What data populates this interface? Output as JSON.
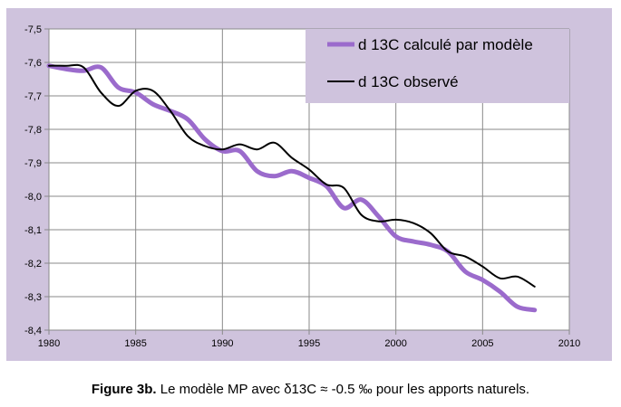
{
  "chart_data": {
    "type": "line",
    "title": "",
    "xlabel": "",
    "ylabel": "",
    "xlim": [
      1980,
      2010
    ],
    "ylim": [
      -8.4,
      -7.5
    ],
    "x_ticks": [
      1980,
      1985,
      1990,
      1995,
      2000,
      2005,
      2010
    ],
    "x_tick_labels": [
      "1980",
      "1985",
      "1990",
      "1995",
      "2000",
      "2005",
      "2010"
    ],
    "y_ticks": [
      -7.5,
      -7.6,
      -7.7,
      -7.8,
      -7.9,
      -8.0,
      -8.1,
      -8.2,
      -8.3,
      -8.4
    ],
    "y_tick_labels": [
      "-7,5",
      "-7,6",
      "-7,7",
      "-7,8",
      "-7,9",
      "-8,0",
      "-8,1",
      "-8,2",
      "-8,3",
      "-8,4"
    ],
    "grid": true,
    "legend_position": "top-right",
    "series": [
      {
        "name": "d 13C calculé par modèle",
        "color": "#9b6bcc",
        "points": [
          [
            1980,
            -7.61
          ],
          [
            1981,
            -7.62
          ],
          [
            1982,
            -7.625
          ],
          [
            1983,
            -7.615
          ],
          [
            1984,
            -7.675
          ],
          [
            1985,
            -7.69
          ],
          [
            1986,
            -7.725
          ],
          [
            1987,
            -7.745
          ],
          [
            1988,
            -7.77
          ],
          [
            1989,
            -7.83
          ],
          [
            1990,
            -7.865
          ],
          [
            1991,
            -7.865
          ],
          [
            1992,
            -7.925
          ],
          [
            1993,
            -7.94
          ],
          [
            1994,
            -7.925
          ],
          [
            1995,
            -7.945
          ],
          [
            1996,
            -7.97
          ],
          [
            1997,
            -8.035
          ],
          [
            1998,
            -8.01
          ],
          [
            1999,
            -8.06
          ],
          [
            2000,
            -8.12
          ],
          [
            2001,
            -8.135
          ],
          [
            2002,
            -8.145
          ],
          [
            2003,
            -8.165
          ],
          [
            2004,
            -8.225
          ],
          [
            2005,
            -8.25
          ],
          [
            2006,
            -8.285
          ],
          [
            2007,
            -8.33
          ],
          [
            2008,
            -8.34
          ]
        ]
      },
      {
        "name": "d 13C  observé",
        "color": "#000000",
        "points": [
          [
            1980,
            -7.61
          ],
          [
            1981,
            -7.61
          ],
          [
            1982,
            -7.615
          ],
          [
            1983,
            -7.69
          ],
          [
            1984,
            -7.73
          ],
          [
            1985,
            -7.685
          ],
          [
            1986,
            -7.685
          ],
          [
            1987,
            -7.745
          ],
          [
            1988,
            -7.82
          ],
          [
            1989,
            -7.85
          ],
          [
            1990,
            -7.86
          ],
          [
            1991,
            -7.845
          ],
          [
            1992,
            -7.86
          ],
          [
            1993,
            -7.84
          ],
          [
            1994,
            -7.885
          ],
          [
            1995,
            -7.92
          ],
          [
            1996,
            -7.965
          ],
          [
            1997,
            -7.975
          ],
          [
            1998,
            -8.055
          ],
          [
            1999,
            -8.075
          ],
          [
            2000,
            -8.07
          ],
          [
            2001,
            -8.08
          ],
          [
            2002,
            -8.11
          ],
          [
            2003,
            -8.165
          ],
          [
            2004,
            -8.18
          ],
          [
            2005,
            -8.21
          ],
          [
            2006,
            -8.245
          ],
          [
            2007,
            -8.24
          ],
          [
            2008,
            -8.27
          ]
        ]
      }
    ]
  },
  "caption": {
    "label": "Figure 3b.",
    "text": " Le modèle MP avec  δ13C ≈ -0.5 ‰ pour les apports naturels."
  }
}
